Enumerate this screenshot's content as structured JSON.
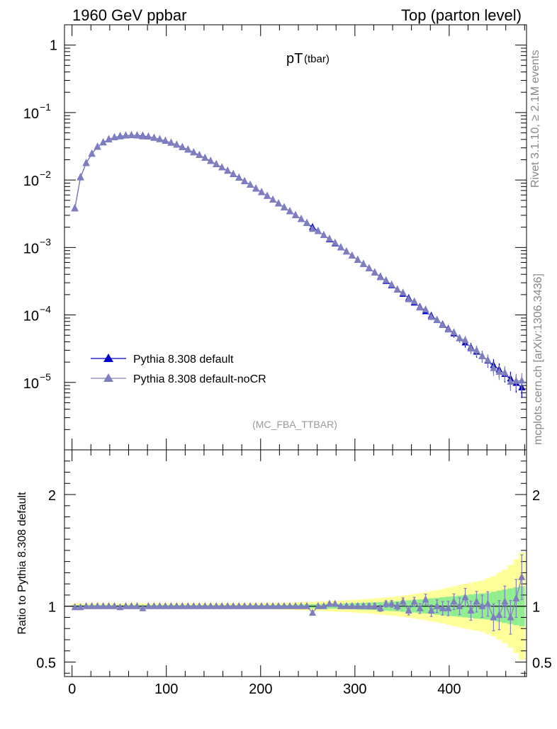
{
  "header": {
    "left": "1960 GeV ppbar",
    "right": "Top (parton level)"
  },
  "side": {
    "rivet": "Rivet 3.1.10, ≥ 2.1M events",
    "mcplots": "mcplots.cern.ch [arXiv:1306.3436]"
  },
  "chart_data": {
    "type": "line",
    "title_main": "pT",
    "title_sub": "(tbar)",
    "watermark": "(MC_FBA_TTBAR)",
    "main": {
      "yscale": "log",
      "ylim": [
        1e-06,
        2.0
      ],
      "xlim": [
        -8,
        482
      ],
      "ytick_labels": [
        {
          "v": 1,
          "base": "1",
          "exp": ""
        },
        {
          "v": 0.1,
          "base": "10",
          "exp": "−1"
        },
        {
          "v": 0.01,
          "base": "10",
          "exp": "−2"
        },
        {
          "v": 0.001,
          "base": "10",
          "exp": "−3"
        },
        {
          "v": 0.0001,
          "base": "10",
          "exp": "−4"
        },
        {
          "v": 1e-05,
          "base": "10",
          "exp": "−5"
        }
      ],
      "x": [
        3,
        9,
        15,
        21,
        27,
        33,
        39,
        45,
        51,
        57,
        63,
        69,
        75,
        81,
        87,
        93,
        99,
        105,
        111,
        117,
        123,
        129,
        135,
        141,
        147,
        153,
        159,
        165,
        171,
        177,
        183,
        189,
        195,
        201,
        207,
        213,
        219,
        225,
        231,
        237,
        243,
        249,
        255,
        261,
        267,
        273,
        279,
        285,
        291,
        297,
        303,
        309,
        315,
        321,
        327,
        333,
        339,
        345,
        351,
        357,
        363,
        369,
        375,
        381,
        387,
        393,
        399,
        405,
        411,
        417,
        423,
        429,
        435,
        441,
        447,
        453,
        459,
        465,
        471,
        477
      ],
      "series": [
        {
          "name": "Pythia 8.308 default",
          "color": "#0000cc",
          "values": [
            0.0038,
            0.011,
            0.0178,
            0.0245,
            0.031,
            0.036,
            0.04,
            0.0428,
            0.0446,
            0.0456,
            0.046,
            0.0458,
            0.045,
            0.0438,
            0.0422,
            0.0402,
            0.038,
            0.0356,
            0.0332,
            0.0307,
            0.0282,
            0.0257,
            0.0234,
            0.0212,
            0.0191,
            0.0171,
            0.0153,
            0.0137,
            0.0122,
            0.0108,
            0.00957,
            0.00846,
            0.00746,
            0.00658,
            0.0058,
            0.00509,
            0.00448,
            0.00393,
            0.00344,
            0.00301,
            0.00263,
            0.0023,
            0.002,
            0.00175,
            0.00152,
            0.00132,
            0.00115,
            0.001,
            0.000869,
            0.000754,
            0.000654,
            0.000567,
            0.000491,
            0.000425,
            0.000368,
            0.000318,
            0.000275,
            0.000237,
            0.000205,
            0.000177,
            0.000152,
            0.000131,
            0.000113,
            9.7e-05,
            8.4e-05,
            7.2e-05,
            6.2e-05,
            5.3e-05,
            4.5e-05,
            3.9e-05,
            3.3e-05,
            2.85e-05,
            2.45e-05,
            2.1e-05,
            1.8e-05,
            1.55e-05,
            1.33e-05,
            1.14e-05,
            9.8e-06,
            8.4e-06
          ]
        },
        {
          "name": "Pythia 8.308 default-noCR",
          "color": "#7f7fbf",
          "values": [
            0.003762,
            0.01089,
            0.0178,
            0.0245,
            0.031,
            0.036,
            0.04,
            0.0428,
            0.04415,
            0.0456,
            0.046,
            0.0458,
            0.0441,
            0.0438,
            0.0422,
            0.0402,
            0.038,
            0.0356,
            0.0332,
            0.0307,
            0.0282,
            0.0257,
            0.0234,
            0.0212,
            0.0191,
            0.0171,
            0.0153,
            0.0137,
            0.0122,
            0.0108,
            0.00957,
            0.00846,
            0.00746,
            0.00658,
            0.0058,
            0.00509,
            0.00448,
            0.00393,
            0.00344,
            0.00301,
            0.00263,
            0.0023,
            0.00188,
            0.00175,
            0.00152,
            0.001346,
            0.001173,
            0.001,
            0.000869,
            0.000754,
            0.000654,
            0.000567,
            0.000491,
            0.000425,
            0.000361,
            0.000325,
            0.000281,
            0.000237,
            0.000213,
            0.00017,
            0.000158,
            0.000128,
            0.00012,
            9.3e-05,
            8.4e-05,
            7.06e-05,
            6.05e-05,
            5.51e-05,
            4.5e-05,
            4.21e-05,
            3.17e-05,
            2.97e-05,
            2.45e-05,
            2.14e-05,
            1.62e-05,
            1.43e-05,
            1.39e-05,
            1.02e-05,
            1.05e-05,
            1.06e-05
          ]
        }
      ]
    },
    "ratio": {
      "ylabel": "Ratio to Pythia 8.308 default",
      "ylim": [
        0.37,
        2.4
      ],
      "xlim": [
        -8,
        482
      ],
      "yticks": [
        0.5,
        1,
        2
      ],
      "ytick_labels": [
        "0.5",
        "1",
        "2"
      ],
      "xticks": [
        0,
        100,
        200,
        300,
        400
      ],
      "xtick_labels": [
        "0",
        "100",
        "200",
        "300",
        "400"
      ],
      "values": [
        0.99,
        0.99,
        1.0,
        1.0,
        1.0,
        1.0,
        1.0,
        1.0,
        0.99,
        1.0,
        1.0,
        1.0,
        0.98,
        1.0,
        1.0,
        1.0,
        1.0,
        1.0,
        1.0,
        1.0,
        1.0,
        1.0,
        1.0,
        1.0,
        1.0,
        1.0,
        1.0,
        1.0,
        1.0,
        1.0,
        1.0,
        1.0,
        1.0,
        1.0,
        1.0,
        1.0,
        1.0,
        1.0,
        1.0,
        1.0,
        1.0,
        1.0,
        0.94,
        1.0,
        1.0,
        1.02,
        1.02,
        1.0,
        1.0,
        1.0,
        1.0,
        1.0,
        1.0,
        1.0,
        0.98,
        1.02,
        1.02,
        1.0,
        1.04,
        0.96,
        1.04,
        0.98,
        1.06,
        0.96,
        1.0,
        0.98,
        0.98,
        1.04,
        1.0,
        1.08,
        0.96,
        1.04,
        1.0,
        1.02,
        0.9,
        0.92,
        1.04,
        0.9,
        1.07,
        1.26
      ],
      "errors": [
        0.005,
        0.005,
        0.005,
        0.005,
        0.005,
        0.005,
        0.005,
        0.005,
        0.005,
        0.005,
        0.005,
        0.005,
        0.005,
        0.005,
        0.005,
        0.005,
        0.005,
        0.005,
        0.005,
        0.005,
        0.005,
        0.005,
        0.005,
        0.005,
        0.005,
        0.005,
        0.005,
        0.005,
        0.005,
        0.005,
        0.005,
        0.005,
        0.005,
        0.005,
        0.005,
        0.005,
        0.005,
        0.005,
        0.005,
        0.005,
        0.005,
        0.005,
        0.008,
        0.01,
        0.01,
        0.012,
        0.012,
        0.014,
        0.014,
        0.016,
        0.018,
        0.02,
        0.022,
        0.024,
        0.026,
        0.028,
        0.03,
        0.032,
        0.035,
        0.038,
        0.04,
        0.044,
        0.048,
        0.052,
        0.056,
        0.06,
        0.065,
        0.07,
        0.075,
        0.08,
        0.086,
        0.092,
        0.1,
        0.11,
        0.12,
        0.13,
        0.14,
        0.15,
        0.17,
        0.2
      ],
      "band_inner": [
        0.01,
        0.01,
        0.01,
        0.01,
        0.01,
        0.01,
        0.01,
        0.01,
        0.01,
        0.01,
        0.01,
        0.01,
        0.01,
        0.01,
        0.01,
        0.01,
        0.01,
        0.01,
        0.01,
        0.01,
        0.01,
        0.01,
        0.01,
        0.01,
        0.01,
        0.01,
        0.01,
        0.01,
        0.01,
        0.01,
        0.01,
        0.01,
        0.011,
        0.011,
        0.012,
        0.012,
        0.013,
        0.013,
        0.014,
        0.015,
        0.016,
        0.017,
        0.018,
        0.019,
        0.02,
        0.021,
        0.022,
        0.023,
        0.025,
        0.027,
        0.029,
        0.031,
        0.033,
        0.035,
        0.037,
        0.04,
        0.043,
        0.046,
        0.05,
        0.053,
        0.057,
        0.061,
        0.065,
        0.07,
        0.075,
        0.08,
        0.085,
        0.09,
        0.095,
        0.1,
        0.105,
        0.11,
        0.115,
        0.12,
        0.13,
        0.14,
        0.15,
        0.16,
        0.17,
        0.18
      ],
      "band_outer": [
        0.025,
        0.025,
        0.025,
        0.025,
        0.025,
        0.025,
        0.025,
        0.025,
        0.025,
        0.025,
        0.025,
        0.025,
        0.025,
        0.025,
        0.025,
        0.025,
        0.025,
        0.025,
        0.025,
        0.025,
        0.025,
        0.025,
        0.025,
        0.025,
        0.025,
        0.025,
        0.025,
        0.025,
        0.025,
        0.025,
        0.025,
        0.025,
        0.026,
        0.027,
        0.028,
        0.029,
        0.03,
        0.031,
        0.032,
        0.034,
        0.036,
        0.038,
        0.04,
        0.042,
        0.044,
        0.046,
        0.048,
        0.05,
        0.053,
        0.056,
        0.059,
        0.062,
        0.066,
        0.07,
        0.074,
        0.079,
        0.084,
        0.09,
        0.096,
        0.102,
        0.11,
        0.118,
        0.126,
        0.135,
        0.145,
        0.155,
        0.166,
        0.178,
        0.19,
        0.2,
        0.21,
        0.22,
        0.23,
        0.25,
        0.27,
        0.3,
        0.33,
        0.37,
        0.42,
        0.48
      ]
    }
  }
}
